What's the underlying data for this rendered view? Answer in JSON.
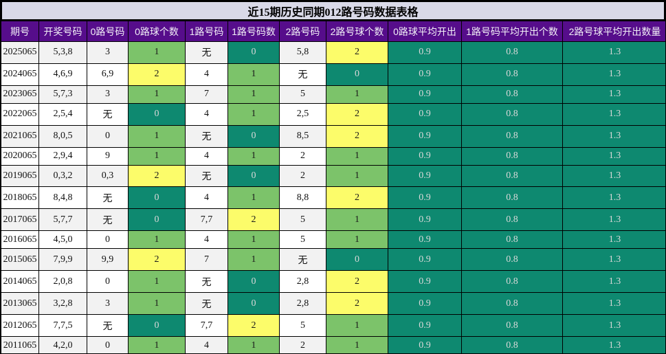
{
  "title": "近15期历史同期012路号码数据表格",
  "colors": {
    "title_bar_bg": "#D9D9E8",
    "header_bg": "#560D8B",
    "header_text": "#F2F0F7",
    "count0_bg": "#0E8970",
    "count1_bg": "#7CC36A",
    "count2_bg": "#FCFC6A",
    "avg_bg": "#0E8970",
    "row_odd_bg": "#F2F2F2",
    "row_even_bg": "#FFFFFF",
    "border": "#000000"
  },
  "table": {
    "headers": [
      "期号",
      "开奖号码",
      "0路号码",
      "0路球个数",
      "1路号码",
      "1路号码数",
      "2路号码",
      "2路号球个数",
      "0路球平均开出",
      "1路号码平均开出个数",
      "2路号球平均开出数量"
    ],
    "rows": [
      {
        "period": "2025065",
        "numbers": "5,3,8",
        "r0": "3",
        "r0c": "1",
        "r1": "无",
        "r1c": "0",
        "r2": "5,8",
        "r2c": "2",
        "avg0": "0.9",
        "avg1": "0.8",
        "avg2": "1.3"
      },
      {
        "period": "2024065",
        "numbers": "4,6,9",
        "r0": "6,9",
        "r0c": "2",
        "r1": "4",
        "r1c": "1",
        "r2": "无",
        "r2c": "0",
        "avg0": "0.9",
        "avg1": "0.8",
        "avg2": "1.3"
      },
      {
        "period": "2023065",
        "numbers": "5,7,3",
        "r0": "3",
        "r0c": "1",
        "r1": "7",
        "r1c": "1",
        "r2": "5",
        "r2c": "1",
        "avg0": "0.9",
        "avg1": "0.8",
        "avg2": "1.3"
      },
      {
        "period": "2022065",
        "numbers": "2,5,4",
        "r0": "无",
        "r0c": "0",
        "r1": "4",
        "r1c": "1",
        "r2": "2,5",
        "r2c": "2",
        "avg0": "0.9",
        "avg1": "0.8",
        "avg2": "1.3"
      },
      {
        "period": "2021065",
        "numbers": "8,0,5",
        "r0": "0",
        "r0c": "1",
        "r1": "无",
        "r1c": "0",
        "r2": "8,5",
        "r2c": "2",
        "avg0": "0.9",
        "avg1": "0.8",
        "avg2": "1.3"
      },
      {
        "period": "2020065",
        "numbers": "2,9,4",
        "r0": "9",
        "r0c": "1",
        "r1": "4",
        "r1c": "1",
        "r2": "2",
        "r2c": "1",
        "avg0": "0.9",
        "avg1": "0.8",
        "avg2": "1.3"
      },
      {
        "period": "2019065",
        "numbers": "0,3,2",
        "r0": "0,3",
        "r0c": "2",
        "r1": "无",
        "r1c": "0",
        "r2": "2",
        "r2c": "1",
        "avg0": "0.9",
        "avg1": "0.8",
        "avg2": "1.3"
      },
      {
        "period": "2018065",
        "numbers": "8,4,8",
        "r0": "无",
        "r0c": "0",
        "r1": "4",
        "r1c": "1",
        "r2": "8,8",
        "r2c": "2",
        "avg0": "0.9",
        "avg1": "0.8",
        "avg2": "1.3"
      },
      {
        "period": "2017065",
        "numbers": "5,7,7",
        "r0": "无",
        "r0c": "0",
        "r1": "7,7",
        "r1c": "2",
        "r2": "5",
        "r2c": "1",
        "avg0": "0.9",
        "avg1": "0.8",
        "avg2": "1.3"
      },
      {
        "period": "2016065",
        "numbers": "4,5,0",
        "r0": "0",
        "r0c": "1",
        "r1": "4",
        "r1c": "1",
        "r2": "5",
        "r2c": "1",
        "avg0": "0.9",
        "avg1": "0.8",
        "avg2": "1.3"
      },
      {
        "period": "2015065",
        "numbers": "7,9,9",
        "r0": "9,9",
        "r0c": "2",
        "r1": "7",
        "r1c": "1",
        "r2": "无",
        "r2c": "0",
        "avg0": "0.9",
        "avg1": "0.8",
        "avg2": "1.3"
      },
      {
        "period": "2014065",
        "numbers": "2,0,8",
        "r0": "0",
        "r0c": "1",
        "r1": "无",
        "r1c": "0",
        "r2": "2,8",
        "r2c": "2",
        "avg0": "0.9",
        "avg1": "0.8",
        "avg2": "1.3"
      },
      {
        "period": "2013065",
        "numbers": "3,2,8",
        "r0": "3",
        "r0c": "1",
        "r1": "无",
        "r1c": "0",
        "r2": "2,8",
        "r2c": "2",
        "avg0": "0.9",
        "avg1": "0.8",
        "avg2": "1.3"
      },
      {
        "period": "2012065",
        "numbers": "7,7,5",
        "r0": "无",
        "r0c": "0",
        "r1": "7,7",
        "r1c": "2",
        "r2": "5",
        "r2c": "1",
        "avg0": "0.9",
        "avg1": "0.8",
        "avg2": "1.3"
      },
      {
        "period": "2011065",
        "numbers": "4,2,0",
        "r0": "0",
        "r0c": "1",
        "r1": "4",
        "r1c": "1",
        "r2": "2",
        "r2c": "1",
        "avg0": "0.9",
        "avg1": "0.8",
        "avg2": "1.3"
      }
    ]
  }
}
